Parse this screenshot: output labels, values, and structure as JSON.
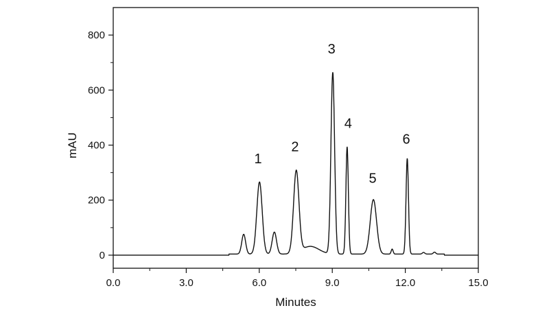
{
  "chart_data": {
    "type": "line",
    "title": "",
    "xlabel": "Minutes",
    "ylabel": "mAU",
    "xlim": [
      0,
      15
    ],
    "ylim": [
      -47.5,
      900
    ],
    "x_ticks": [
      "0.0",
      "3.0",
      "6.0",
      "9.0",
      "12.0",
      "15.0"
    ],
    "x_tick_values": [
      0,
      3,
      6,
      9,
      12,
      15
    ],
    "y_ticks": [
      "0",
      "200",
      "400",
      "600",
      "800"
    ],
    "y_tick_values": [
      0,
      200,
      400,
      600,
      800
    ],
    "grid": false,
    "line_color": "#111111",
    "peaks": [
      {
        "rt": 5.36,
        "height": 72,
        "sigma": 0.08
      },
      {
        "rt": 6.01,
        "height": 262,
        "sigma": 0.11
      },
      {
        "rt": 6.62,
        "height": 80,
        "sigma": 0.09
      },
      {
        "rt": 7.52,
        "height": 298,
        "sigma": 0.11
      },
      {
        "rt": 8.1,
        "height": 28,
        "sigma": 0.35
      },
      {
        "rt": 9.02,
        "height": 660,
        "sigma": 0.075
      },
      {
        "rt": 9.61,
        "height": 390,
        "sigma": 0.05
      },
      {
        "rt": 10.69,
        "height": 198,
        "sigma": 0.13
      },
      {
        "rt": 11.46,
        "height": 18,
        "sigma": 0.04
      },
      {
        "rt": 12.08,
        "height": 348,
        "sigma": 0.05
      },
      {
        "rt": 12.75,
        "height": 6,
        "sigma": 0.05
      },
      {
        "rt": 13.2,
        "height": 7,
        "sigma": 0.05
      }
    ],
    "annotations": [
      {
        "text": "1",
        "x": 5.95,
        "y": 352
      },
      {
        "text": "2",
        "x": 7.47,
        "y": 395
      },
      {
        "text": "3",
        "x": 8.97,
        "y": 750
      },
      {
        "text": "4",
        "x": 9.65,
        "y": 480
      },
      {
        "text": "5",
        "x": 10.66,
        "y": 280
      },
      {
        "text": "6",
        "x": 12.04,
        "y": 422
      }
    ]
  }
}
